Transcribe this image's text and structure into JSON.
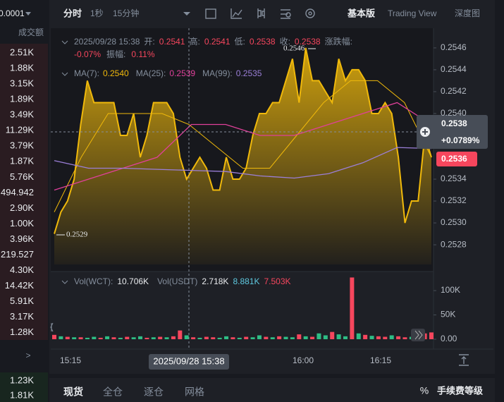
{
  "left_panel": {
    "tick_size": "0.0001",
    "column_header": "成交额",
    "rows_sell": [
      "2.51K",
      "1.88K",
      "3.15K",
      "1.89K",
      "3.49K",
      "11.29K",
      "3.79K",
      "1.87K",
      "5.76K",
      "494.942",
      "2.90K",
      "1.00K",
      "3.96K",
      "219.527",
      "4.30K",
      "14.42K",
      "5.91K",
      "3.17K",
      "1.28K"
    ],
    "more": ">",
    "rows_buy": [
      "1.23K",
      "1.81K"
    ]
  },
  "toolbar": {
    "tabs": [
      "分时",
      "1秒",
      "15分钟"
    ],
    "views": [
      "基本版",
      "Trading View",
      "深度图"
    ]
  },
  "ohlc": {
    "time": "2025/09/28 15:38",
    "open_label": "开:",
    "open": "0.2541",
    "high_label": "高:",
    "high": "0.2541",
    "low_label": "低:",
    "low": "0.2538",
    "close_label": "收:",
    "close": "0.2538",
    "change_label": "涨跌幅:",
    "change": "-0.07%",
    "amplitude_label": "振幅:",
    "amplitude": "0.11%"
  },
  "ma": [
    {
      "name": "MA(7):",
      "value": "0.2540",
      "color": "#f0b90b"
    },
    {
      "name": "MA(25):",
      "value": "0.2539",
      "color": "#e0409a"
    },
    {
      "name": "MA(99):",
      "value": "0.2535",
      "color": "#9b7fd8"
    }
  ],
  "chart": {
    "type": "line",
    "color": "#f0b90b",
    "price": [
      0.2529,
      0.2531,
      0.2532,
      0.2534,
      0.2539,
      0.2543,
      0.2541,
      0.2541,
      0.2541,
      0.2541,
      0.2538,
      0.2538,
      0.254,
      0.2536,
      0.2538,
      0.2541,
      0.2541,
      0.2541,
      0.254,
      0.2536,
      0.2534,
      0.2535,
      0.2536,
      0.2535,
      0.2533,
      0.2533,
      0.2536,
      0.2534,
      0.2534,
      0.2535,
      0.2538,
      0.254,
      0.254,
      0.2541,
      0.2541,
      0.2543,
      0.2545,
      0.2541,
      0.2546,
      0.2543,
      0.2543,
      0.2542,
      0.2541,
      0.2545,
      0.2543,
      0.2544,
      0.2544,
      0.2543,
      0.254,
      0.254,
      0.2541,
      0.254,
      0.2536,
      0.253,
      0.2532,
      0.2532,
      0.2538,
      0.2536
    ],
    "ma7": [
      0.2531,
      0.2536,
      0.254,
      0.254,
      0.254,
      0.2539,
      0.2537,
      0.2535,
      0.2535,
      0.2538,
      0.2541,
      0.2543,
      0.2543,
      0.2541,
      0.2536
    ],
    "ma25": [
      0.2533,
      0.2534,
      0.2535,
      0.2536,
      0.2539,
      0.2539,
      0.2538,
      0.2538,
      0.2539,
      0.254,
      0.2541,
      0.2539
    ],
    "ma99": [
      0.25357,
      0.2535,
      0.2535,
      0.25349,
      0.25348,
      0.25347,
      0.25343,
      0.25341,
      0.25345,
      0.25355,
      0.25369,
      0.25368
    ],
    "ylim": [
      0.25262,
      0.25478
    ],
    "yticks": [
      0.2546,
      0.2544,
      0.2542,
      {
        "value": 0.254,
        "label": "0.2540"
      },
      0.2534,
      0.2532,
      {
        "value": 0.253,
        "label": "0.2530"
      },
      0.2528
    ],
    "high_mark": "0.2546",
    "low_mark": "0.2529",
    "last_price": "0.2538",
    "last_change": "+0.0789%",
    "current_price": "0.2536"
  },
  "volume": {
    "legend": {
      "name1": "Vol(WCT):",
      "v1": "10.706K",
      "name2": "Vol(USDT)",
      "v2": "2.718K",
      "v3": "8.881K",
      "v4": "7.503K"
    },
    "up_color": "#2ebd85",
    "down_color": "#f6465d",
    "values": [
      9000,
      6000,
      5000,
      4000,
      4000,
      3000,
      5000,
      3000,
      6000,
      4000,
      3000,
      5000,
      4000,
      6000,
      3000,
      4000,
      5000,
      4000,
      6000,
      18000,
      8000,
      4000,
      3000,
      5000,
      4000,
      3000,
      6000,
      4000,
      3000,
      5000,
      4000,
      8000,
      5000,
      4000,
      6000,
      5000,
      4000,
      10000,
      6000,
      5000,
      12000,
      8000,
      15000,
      10000,
      6000,
      127000,
      12000,
      9000,
      7000,
      6000,
      5000,
      8000,
      6000,
      4000,
      5000,
      9000,
      12000,
      14000
    ],
    "up": [
      false,
      true,
      false,
      true,
      false,
      true,
      true,
      false,
      true,
      false,
      true,
      false,
      true,
      true,
      false,
      true,
      false,
      true,
      false,
      false,
      true,
      false,
      true,
      false,
      false,
      true,
      true,
      false,
      true,
      false,
      true,
      true,
      false,
      true,
      false,
      true,
      true,
      false,
      true,
      false,
      true,
      true,
      false,
      true,
      true,
      false,
      true,
      false,
      true,
      false,
      false,
      true,
      false,
      false,
      true,
      true,
      false,
      false
    ],
    "ylim": [
      0,
      132000
    ],
    "yticks": [
      {
        "value": 100000,
        "label": "100K"
      },
      {
        "value": 50000,
        "label": "50K"
      },
      {
        "value": 0,
        "label": "0.00"
      }
    ]
  },
  "time_axis": [
    "15:15",
    "16:00",
    "16:15"
  ],
  "crosshair_time": "2025/09/28 15:38",
  "bottom_tabs": [
    "现货",
    "全仓",
    "逐仓",
    "网格"
  ],
  "percent": "%",
  "fee": "手续费等级"
}
